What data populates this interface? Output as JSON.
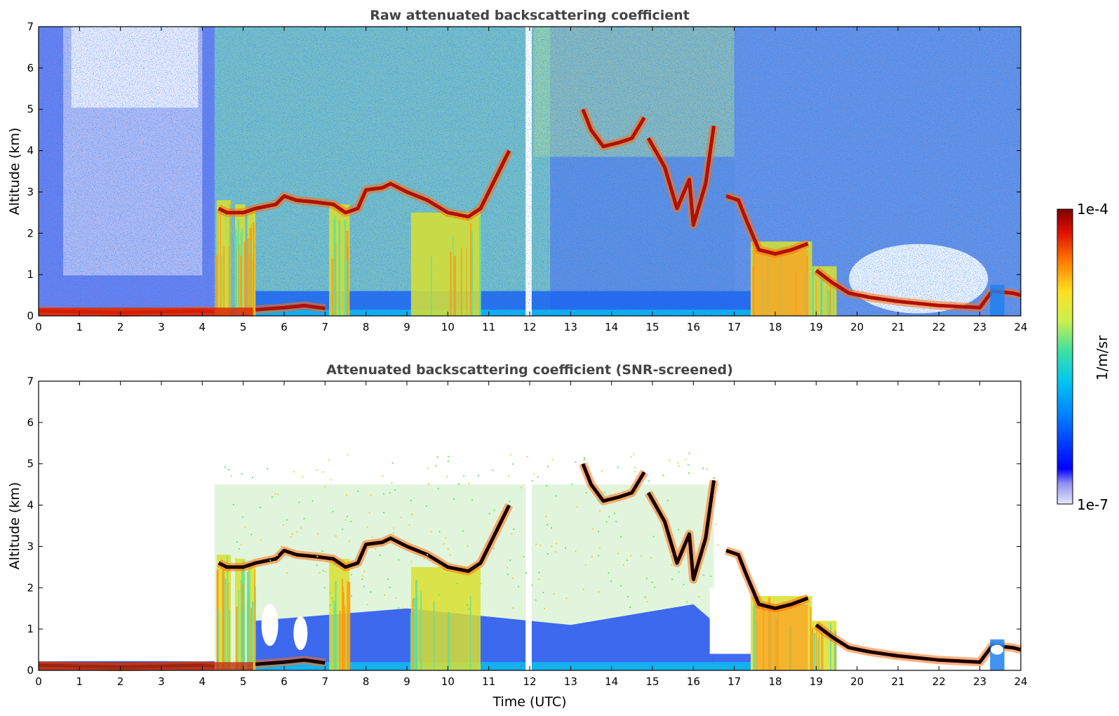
{
  "chart_data": [
    {
      "type": "heatmap",
      "title": "Raw attenuated backscattering coefficient",
      "xlabel": "",
      "ylabel": "Altitude (km)",
      "xlim": [
        0,
        24
      ],
      "ylim": [
        0,
        7
      ],
      "xticks": [
        0,
        1,
        2,
        3,
        4,
        5,
        6,
        7,
        8,
        9,
        10,
        11,
        12,
        13,
        14,
        15,
        16,
        17,
        18,
        19,
        20,
        21,
        22,
        23,
        24
      ],
      "yticks": [
        0,
        1,
        2,
        3,
        4,
        5,
        6,
        7
      ],
      "grid": false,
      "layer_features": [
        {
          "t": [
            0,
            4.2
          ],
          "alt_km": 0.12,
          "level": "high"
        },
        {
          "t": [
            4.4,
            7.2
          ],
          "alt_km": 2.6,
          "level": "high"
        },
        {
          "t": [
            7.2,
            11.0
          ],
          "alt_km": 2.8,
          "level": "high"
        },
        {
          "t": [
            13.3,
            14.8
          ],
          "alt_km": 4.2,
          "level": "high"
        },
        {
          "t": [
            14.8,
            16.5
          ],
          "alt_km": 3.0,
          "level": "high"
        },
        {
          "t": [
            17.0,
            19.0
          ],
          "alt_km": 1.7,
          "level": "high"
        },
        {
          "t": [
            19.0,
            24.0
          ],
          "alt_km": 0.3,
          "level": "high"
        }
      ]
    },
    {
      "type": "heatmap",
      "title": "Attenuated backscattering coefficient (SNR-screened)",
      "xlabel": "Time (UTC)",
      "ylabel": "Altitude (km)",
      "xlim": [
        0,
        24
      ],
      "ylim": [
        0,
        7
      ],
      "xticks": [
        0,
        1,
        2,
        3,
        4,
        5,
        6,
        7,
        8,
        9,
        10,
        11,
        12,
        13,
        14,
        15,
        16,
        17,
        18,
        19,
        20,
        21,
        22,
        23,
        24
      ],
      "yticks": [
        0,
        1,
        2,
        3,
        4,
        5,
        6,
        7
      ],
      "grid": false
    }
  ],
  "colorbar": {
    "label": "1/m/sr",
    "min_label": "1e-7",
    "max_label": "1e-4",
    "scale": "log",
    "colors": [
      "#e6e6fa",
      "#0000ff",
      "#00bfff",
      "#40e0a0",
      "#c8f050",
      "#ffe020",
      "#ff8000",
      "#e01000",
      "#800000"
    ]
  }
}
